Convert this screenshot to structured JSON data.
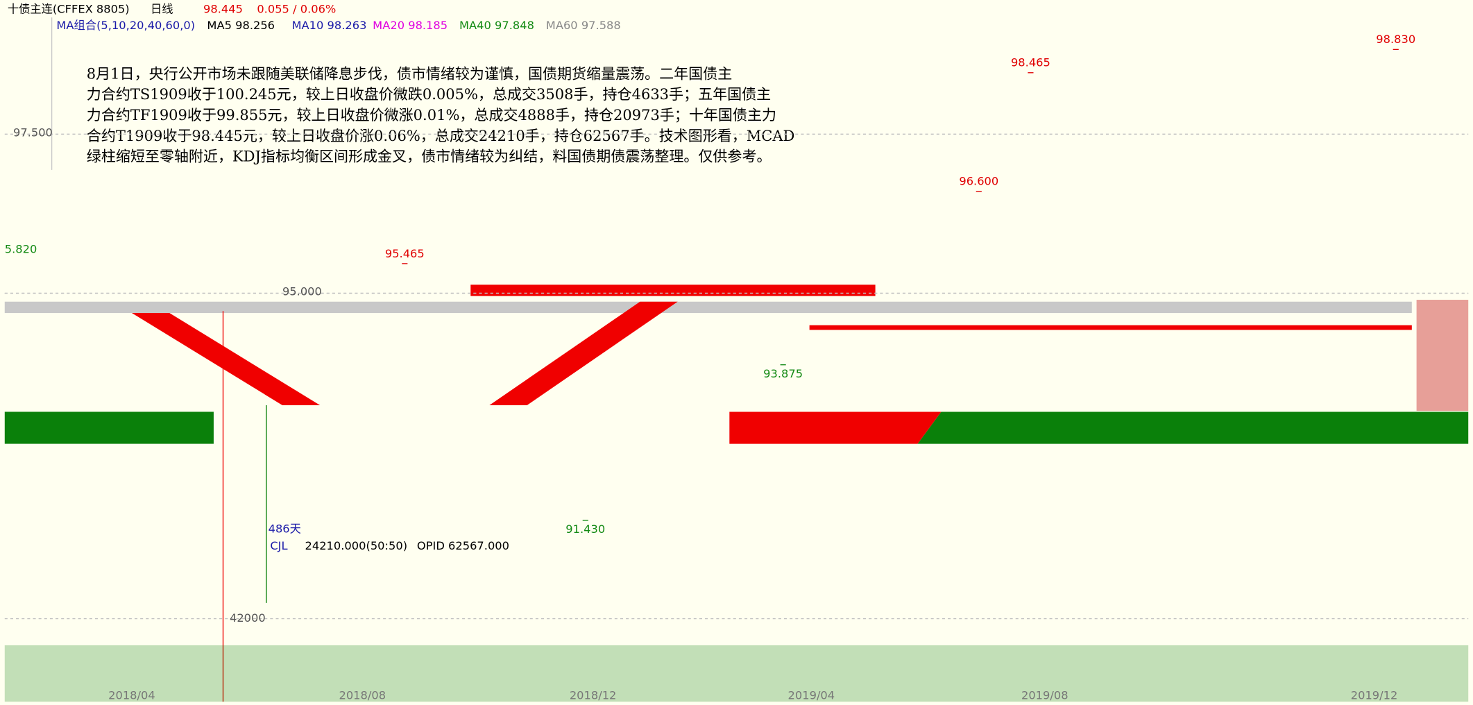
{
  "header": {
    "symbol": "十债主连(CFFEX 8805)",
    "period": "日线",
    "price": "98.445",
    "change": "0.055 / 0.06%"
  },
  "ma_legend": {
    "label": "MA组合(5,10,20,40,60,0)",
    "items": [
      {
        "text": "MA5 98.256",
        "color": "#000000"
      },
      {
        "text": "MA10 98.263",
        "color": "#1a1aa8"
      },
      {
        "text": "MA20 98.185",
        "color": "#e000e0"
      },
      {
        "text": "MA40 97.848",
        "color": "#138a13"
      },
      {
        "text": "MA60 97.588",
        "color": "#888888"
      }
    ]
  },
  "commentary": [
    "8月1日，央行公开市场未跟随美联储降息步伐，债市情绪较为谨慎，国债期货缩量震荡。二年国债主",
    "力合约TS1909收于100.245元，较上日收盘价微跌0.005%，总成交3508手，持仓4633手；五年国债主",
    "力合约TF1909收于99.855元，较上日收盘价微涨0.01%，总成交4888手，持仓20973手；十年国债主力",
    "合约T1909收于98.445元，较上日收盘价涨0.06%，总成交24210手，持仓62567手。技术图形看，MCAD",
    "绿柱缩短至零轴附近，KDJ指标均衡区间形成金叉，债市情绪较为纠结，料国债期债震荡整理。仅供参考。"
  ],
  "price_axis": {
    "ylim": [
      99.4,
      90.8
    ],
    "yticks": [
      {
        "value": 97.5,
        "label": "97.500"
      },
      {
        "value": 95,
        "label": "95.000"
      }
    ]
  },
  "price_labels": [
    {
      "value": 98.83,
      "label": "98.830"
    },
    {
      "value": 98.465,
      "label": "98.465"
    },
    {
      "value": 96.6,
      "label": "96.600"
    },
    {
      "value": 95.465,
      "label": "95.465"
    },
    {
      "value": 93.875,
      "label": "93.875"
    },
    {
      "value": 91.43,
      "label": "91.430"
    }
  ],
  "fragment_label": "5.820",
  "days_label": "486天",
  "volume": {
    "indicator": "CJL",
    "reading": "24210.000(50:50)",
    "open_interest": "OPID 62567.000",
    "ylim": [
      0,
      70000
    ],
    "yticks": [
      42000
    ]
  },
  "x_labels": [
    "2018/04",
    "2018/08",
    "2018/12",
    "2019/04",
    "2019/08",
    "2019/12"
  ]
}
